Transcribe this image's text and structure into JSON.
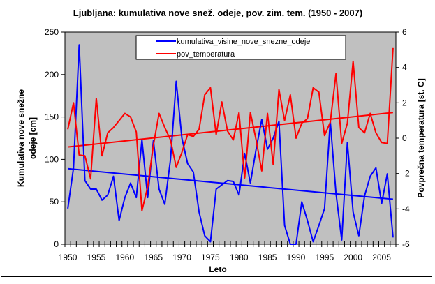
{
  "chart_data": {
    "type": "line",
    "title": "Ljubljana: kumulativa nove snež. odeje, pov. zim. tem. (1950 - 2007)",
    "xlabel": "Leto",
    "ylabel": "Kumulativa nove snežne odeje [cm]",
    "y2label": "Povprečna temperatura [st. C]",
    "ylim": [
      0,
      250
    ],
    "y2lim": [
      -6,
      6
    ],
    "yticks": [
      0,
      50,
      100,
      150,
      200,
      250
    ],
    "y2ticks": [
      -6,
      -4,
      -2,
      0,
      2,
      4,
      6
    ],
    "xtick_labels": [
      "1950",
      "1955",
      "1960",
      "1965",
      "1970",
      "1975",
      "1980",
      "1985",
      "1990",
      "1995",
      "2000",
      "2005"
    ],
    "x": [
      1950,
      1951,
      1952,
      1953,
      1954,
      1955,
      1956,
      1957,
      1958,
      1959,
      1960,
      1961,
      1962,
      1963,
      1964,
      1965,
      1966,
      1967,
      1968,
      1969,
      1970,
      1971,
      1972,
      1973,
      1974,
      1975,
      1976,
      1977,
      1978,
      1979,
      1980,
      1981,
      1982,
      1983,
      1984,
      1985,
      1986,
      1987,
      1988,
      1989,
      1990,
      1991,
      1992,
      1993,
      1994,
      1995,
      1996,
      1997,
      1998,
      1999,
      2000,
      2001,
      2002,
      2003,
      2004,
      2005,
      2006,
      2007
    ],
    "grid": false,
    "plot_background": "#c0c0c0",
    "legend_position": "top-center",
    "series": [
      {
        "name": "kumulativa_visine_nove_snezne_odeje",
        "axis": "left",
        "color": "#0000ff",
        "values": [
          42,
          90,
          235,
          75,
          65,
          65,
          52,
          58,
          80,
          28,
          55,
          72,
          55,
          123,
          55,
          122,
          65,
          47,
          100,
          192,
          125,
          95,
          85,
          38,
          10,
          3,
          65,
          70,
          75,
          74,
          58,
          107,
          72,
          112,
          147,
          112,
          125,
          145,
          22,
          0,
          0,
          50,
          28,
          3,
          22,
          42,
          145,
          60,
          5,
          120,
          38,
          10,
          57,
          80,
          90,
          48,
          83,
          8
        ]
      },
      {
        "name": "pov_temperatura",
        "axis": "right",
        "color": "#ff0000",
        "values": [
          0.5,
          2.0,
          -0.95,
          -1.0,
          -2.3,
          2.25,
          -1.0,
          0.3,
          0.6,
          1.0,
          1.4,
          1.2,
          0.35,
          -4.1,
          -2.75,
          -0.4,
          1.4,
          0.6,
          -0.1,
          -1.65,
          -0.8,
          0.2,
          0.1,
          0.5,
          2.45,
          2.85,
          0.2,
          2.05,
          0.4,
          -0.1,
          1.45,
          -2.25,
          1.45,
          -0.1,
          -1.85,
          1.4,
          -1.5,
          2.75,
          1.0,
          2.45,
          0.0,
          0.85,
          1.1,
          2.85,
          2.6,
          0.15,
          0.9,
          3.65,
          -0.3,
          0.85,
          4.35,
          0.6,
          0.3,
          1.4,
          0.3,
          -0.25,
          -0.3,
          5.1
        ]
      }
    ],
    "trendlines": [
      {
        "series": "kumulativa_visine_nove_snezne_odeje",
        "axis": "left",
        "color": "#0000ff",
        "start": 89,
        "end": 53
      },
      {
        "series": "pov_temperatura",
        "axis": "right",
        "color": "#ff0000",
        "start": -0.5,
        "end": 1.45
      }
    ]
  }
}
